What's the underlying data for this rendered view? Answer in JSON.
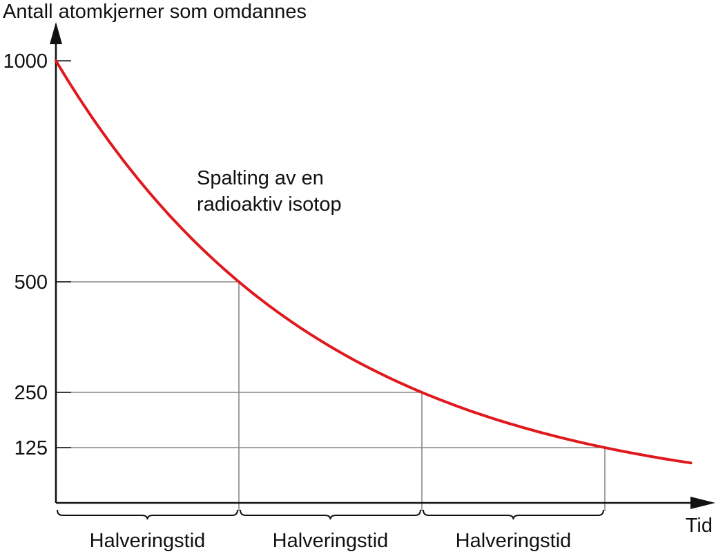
{
  "chart_data": {
    "type": "line",
    "title": "",
    "ylabel": "Antall atomkjerner som omdannes",
    "xlabel": "Tid",
    "xlim": [
      0,
      3.5
    ],
    "ylim": [
      0,
      1000
    ],
    "yticks": [
      {
        "value": 1000,
        "label": "1000"
      },
      {
        "value": 500,
        "label": "500"
      },
      {
        "value": 250,
        "label": "250"
      },
      {
        "value": 125,
        "label": "125"
      }
    ],
    "series": [
      {
        "color": "#e0191e",
        "x": [
          0,
          0.25,
          0.5,
          0.75,
          1,
          1.25,
          1.5,
          1.75,
          2,
          2.25,
          2.5,
          2.75,
          3,
          3.25,
          3.47
        ],
        "y": [
          1000,
          841,
          707,
          595,
          500,
          420,
          354,
          297,
          250,
          210,
          177,
          149,
          125,
          105,
          90
        ]
      }
    ],
    "guide_points": [
      {
        "x": 1,
        "y": 500
      },
      {
        "x": 2,
        "y": 250
      },
      {
        "x": 3,
        "y": 125
      }
    ],
    "annotation": {
      "lines": [
        "Spalting av en",
        "radioaktiv isotop"
      ],
      "at": {
        "x": 0.77,
        "y": 720
      }
    },
    "intervals": [
      {
        "from": 0,
        "to": 1,
        "label": "Halveringstid"
      },
      {
        "from": 1,
        "to": 2,
        "label": "Halveringstid"
      },
      {
        "from": 2,
        "to": 3,
        "label": "Halveringstid"
      }
    ],
    "colors": {
      "curve": "#e0191e",
      "axis": "#111111",
      "guide": "#888888"
    }
  }
}
